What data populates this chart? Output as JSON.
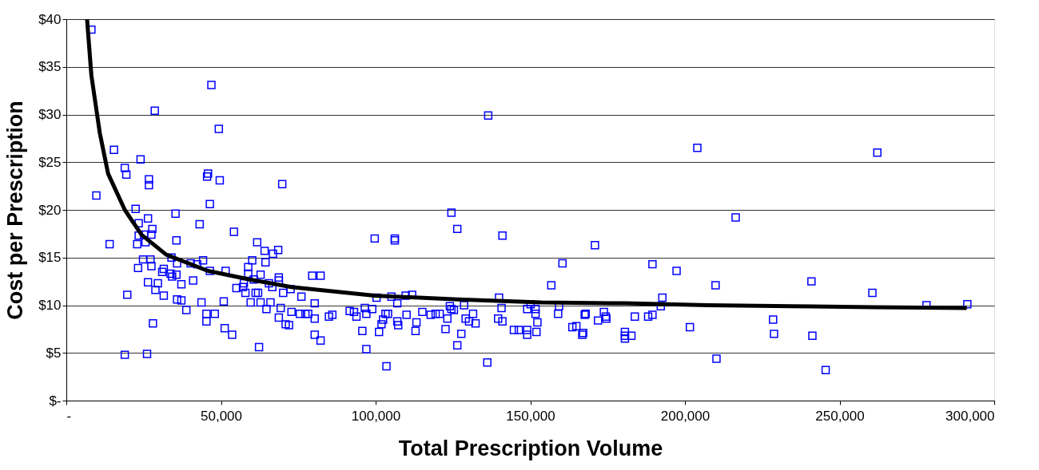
{
  "chart_data": {
    "type": "scatter",
    "xlabel": "Total Prescription Volume",
    "ylabel": "Cost per Prescription",
    "xlim": [
      0,
      300000
    ],
    "ylim": [
      0,
      40
    ],
    "xticks": [
      {
        "value": 0,
        "label": "-"
      },
      {
        "value": 50000,
        "label": "50,000"
      },
      {
        "value": 100000,
        "label": "100,000"
      },
      {
        "value": 150000,
        "label": "150,000"
      },
      {
        "value": 200000,
        "label": "200,000"
      },
      {
        "value": 250000,
        "label": "250,000"
      },
      {
        "value": 300000,
        "label": "300,000"
      }
    ],
    "yticks": [
      {
        "value": 0,
        "label": "$-"
      },
      {
        "value": 5,
        "label": "$5"
      },
      {
        "value": 10,
        "label": "$10"
      },
      {
        "value": 15,
        "label": "$15"
      },
      {
        "value": 20,
        "label": "$20"
      },
      {
        "value": 25,
        "label": "$25"
      },
      {
        "value": 30,
        "label": "$30"
      },
      {
        "value": 35,
        "label": "$35"
      },
      {
        "value": 40,
        "label": "$40"
      }
    ],
    "grid": "y",
    "series": [
      {
        "color": "#0000ff",
        "marker": "square",
        "x": [
          8100,
          9700,
          14000,
          15400,
          18900,
          19400,
          19700,
          18900,
          22400,
          23200,
          22900,
          23400,
          24000,
          23400,
          24800,
          25100,
          25600,
          26400,
          26700,
          26700,
          26400,
          26100,
          27800,
          27500,
          27200,
          27500,
          28000,
          28600,
          28800,
          29600,
          31500,
          31000,
          31500,
          34000,
          33700,
          34200,
          35600,
          35300,
          35600,
          35800,
          35800,
          37200,
          37200,
          38800,
          40200,
          41000,
          42300,
          43100,
          43700,
          44200,
          45300,
          45300,
          45500,
          45800,
          46400,
          46400,
          46900,
          48000,
          49300,
          49600,
          50900,
          51200,
          51500,
          53600,
          54200,
          55000,
          57400,
          57100,
          57900,
          58800,
          58800,
          60100,
          59600,
          60600,
          61200,
          61700,
          62000,
          62300,
          62800,
          64100,
          64400,
          62800,
          64700,
          66000,
          65500,
          66600,
          66800,
          68500,
          68700,
          68700,
          69300,
          68700,
          69800,
          70100,
          70900,
          72000,
          72500,
          72800,
          75500,
          76000,
          77300,
          78200,
          79500,
          80300,
          80300,
          80300,
          82200,
          82200,
          84900,
          86000,
          91600,
          93000,
          93800,
          96500,
          97000,
          98900,
          95700,
          97000,
          99700,
          100300,
          101100,
          101900,
          102400,
          103200,
          104000,
          103500,
          105100,
          106200,
          106200,
          107000,
          107000,
          107300,
          110000,
          109700,
          111800,
          113200,
          112900,
          115100,
          117800,
          119400,
          120700,
          122600,
          123200,
          124000,
          124500,
          125300,
          124500,
          126400,
          126400,
          127700,
          128600,
          129100,
          130200,
          131500,
          132300,
          136100,
          136400,
          139600,
          139900,
          140700,
          141000,
          141000,
          144700,
          146300,
          149000,
          149000,
          149000,
          150100,
          151700,
          151700,
          152300,
          152000,
          156800,
          159300,
          159000,
          160400,
          163600,
          164900,
          166800,
          167100,
          167600,
          167900,
          170900,
          171900,
          173800,
          174400,
          174600,
          180600,
          180600,
          180600,
          182700,
          183800,
          188100,
          189500,
          189500,
          192200,
          192700,
          197300,
          204000,
          201600,
          209900,
          210200,
          216400,
          228500,
          228800,
          240900,
          241200,
          245500,
          262200,
          260600,
          278100,
          291300
        ],
        "values": [
          38.9,
          21.5,
          16.4,
          26.3,
          24.4,
          23.7,
          11.1,
          4.8,
          20.1,
          13.9,
          16.4,
          18.6,
          25.3,
          17.3,
          14.8,
          17.4,
          16.6,
          19.1,
          23.2,
          22.6,
          12.4,
          4.9,
          18.0,
          17.4,
          14.8,
          14.1,
          8.1,
          30.4,
          11.6,
          12.3,
          13.8,
          13.5,
          11.0,
          15.0,
          13.3,
          13.0,
          13.2,
          19.6,
          16.8,
          14.4,
          10.6,
          10.5,
          12.2,
          9.5,
          14.4,
          12.6,
          14.3,
          18.5,
          10.3,
          14.7,
          8.3,
          9.1,
          23.5,
          23.8,
          20.6,
          13.6,
          33.1,
          9.1,
          28.5,
          23.1,
          10.4,
          7.6,
          13.6,
          6.9,
          17.7,
          11.8,
          12.3,
          11.9,
          11.3,
          14.0,
          13.3,
          14.7,
          10.3,
          12.7,
          11.3,
          16.6,
          11.3,
          5.6,
          13.2,
          15.7,
          14.5,
          10.3,
          9.6,
          10.3,
          12.3,
          11.9,
          15.4,
          15.8,
          12.9,
          12.6,
          9.7,
          8.7,
          22.7,
          11.3,
          8.0,
          7.9,
          11.7,
          9.3,
          9.1,
          10.9,
          9.1,
          9.1,
          13.1,
          10.2,
          8.6,
          6.9,
          13.1,
          6.3,
          8.8,
          9.0,
          9.4,
          9.3,
          8.8,
          9.7,
          9.1,
          9.6,
          7.3,
          5.4,
          17.0,
          10.8,
          7.2,
          8.0,
          8.5,
          9.1,
          9.1,
          3.6,
          10.9,
          16.8,
          17.0,
          10.2,
          8.3,
          7.9,
          9.0,
          11.0,
          11.1,
          8.2,
          7.3,
          9.3,
          9.0,
          9.1,
          9.1,
          7.5,
          8.6,
          9.9,
          9.6,
          9.5,
          19.7,
          18.0,
          5.8,
          7.0,
          10.0,
          8.6,
          8.3,
          9.1,
          8.1,
          4.0,
          29.9,
          8.6,
          10.8,
          9.7,
          17.3,
          8.3,
          7.4,
          7.4,
          7.4,
          6.9,
          9.6,
          10.1,
          9.6,
          9.1,
          8.2,
          7.2,
          12.1,
          9.9,
          9.1,
          14.4,
          7.7,
          7.8,
          6.9,
          7.1,
          9.0,
          9.1,
          16.3,
          8.4,
          9.3,
          8.8,
          8.6,
          7.2,
          6.8,
          6.5,
          6.8,
          8.8,
          8.8,
          9.0,
          14.3,
          9.9,
          10.8,
          13.6,
          26.5,
          7.7,
          12.1,
          4.4,
          19.2,
          8.5,
          7.0,
          12.5,
          6.8,
          3.2,
          26.0,
          11.3,
          10.0,
          10.1
        ]
      },
      {
        "type": "line",
        "color": "#000000",
        "line_style": "solid",
        "x": [
          6700,
          8100,
          10800,
          13500,
          18900,
          24300,
          32300,
          45800,
          59300,
          72800,
          99700,
          126700,
          153600,
          180600,
          207500,
          234500,
          261400,
          291100
        ],
        "values": [
          40,
          34.1,
          28.1,
          23.8,
          20.0,
          17.4,
          15.3,
          13.6,
          12.7,
          11.9,
          11.0,
          10.6,
          10.3,
          10.2,
          10.0,
          9.9,
          9.8,
          9.7
        ]
      }
    ]
  }
}
